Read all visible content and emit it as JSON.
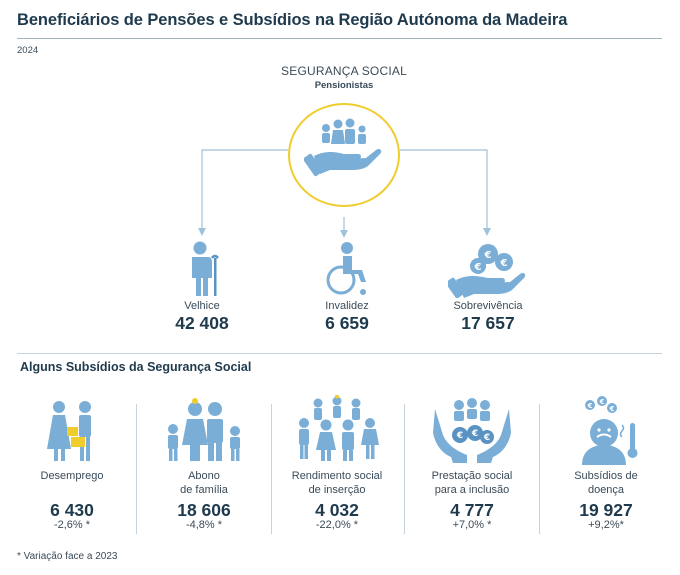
{
  "header": {
    "title": "Beneficiários de Pensões e Subsídios na Região Autónoma da Madeira",
    "year": "2024"
  },
  "social_security": {
    "heading": "SEGURANÇA SOCIAL",
    "subheading": "Pensionistas"
  },
  "pensions": [
    {
      "label": "Velhice",
      "value": "42 408",
      "icon": "elderly-person-icon"
    },
    {
      "label": "Invalidez",
      "value": "6 659",
      "icon": "wheelchair-icon"
    },
    {
      "label": "Sobrevivência",
      "value": "17 657",
      "icon": "hand-coins-icon"
    }
  ],
  "subsidies_section": {
    "title": "Alguns Subsídios da Segurança Social",
    "items": [
      {
        "label_line1": "Desemprego",
        "label_line2": "",
        "value": "6 430",
        "variation": "-2,6% *",
        "icon": "unemployed-people-icon"
      },
      {
        "label_line1": "Abono",
        "label_line2": "de família",
        "value": "18 606",
        "variation": "-4,8% *",
        "icon": "family-icon"
      },
      {
        "label_line1": "Rendimento social",
        "label_line2": "de inserção",
        "value": "4 032",
        "variation": "-22,0% *",
        "icon": "group-people-icon"
      },
      {
        "label_line1": "Prestação social",
        "label_line2": "para a inclusão",
        "value": "4 777",
        "variation": "+7,0% *",
        "icon": "hands-inclusion-icon"
      },
      {
        "label_line1": "Subsídios de",
        "label_line2": "doença",
        "value": "19 927",
        "variation": "+9,2%*",
        "icon": "sick-person-icon"
      }
    ]
  },
  "footnote": "* Variação face a 2023",
  "colors": {
    "icon": "#7aaed6",
    "icon_dark": "#5a93c2",
    "ring": "#f0cd2c",
    "text": "#1f3a4d"
  }
}
